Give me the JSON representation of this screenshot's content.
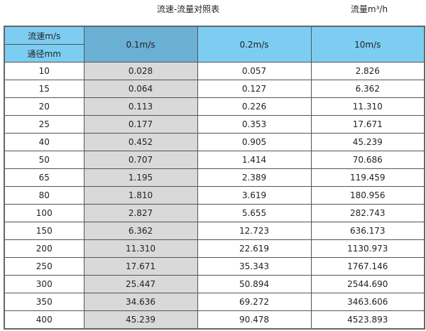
{
  "title": "流速-流量对照表",
  "unit_label": "流量m³/h",
  "colors": {
    "header": "#7dcdf3",
    "header_selected": "#6ab0d4",
    "highlight_column": "#d9d9d9"
  },
  "table": {
    "header_velocity": "流速m/s",
    "header_diameter": "通径mm",
    "columns": [
      "0.1m/s",
      "0.2m/s",
      "10m/s"
    ],
    "rows": [
      [
        "10",
        "0.028",
        "0.057",
        "2.826"
      ],
      [
        "15",
        "0.064",
        "0.127",
        "6.362"
      ],
      [
        "20",
        "0.113",
        "0.226",
        "11.310"
      ],
      [
        "25",
        "0.177",
        "0.353",
        "17.671"
      ],
      [
        "40",
        "0.452",
        "0.905",
        "45.239"
      ],
      [
        "50",
        "0.707",
        "1.414",
        "70.686"
      ],
      [
        "65",
        "1.195",
        "2.389",
        "119.459"
      ],
      [
        "80",
        "1.810",
        "3.619",
        "180.956"
      ],
      [
        "100",
        "2.827",
        "5.655",
        "282.743"
      ],
      [
        "150",
        "6.362",
        "12.723",
        "636.173"
      ],
      [
        "200",
        "11.310",
        "22.619",
        "1130.973"
      ],
      [
        "250",
        "17.671",
        "35.343",
        "1767.146"
      ],
      [
        "300",
        "25.447",
        "50.894",
        "2544.690"
      ],
      [
        "350",
        "34.636",
        "69.272",
        "3463.606"
      ],
      [
        "400",
        "45.239",
        "90.478",
        "4523.893"
      ]
    ]
  }
}
